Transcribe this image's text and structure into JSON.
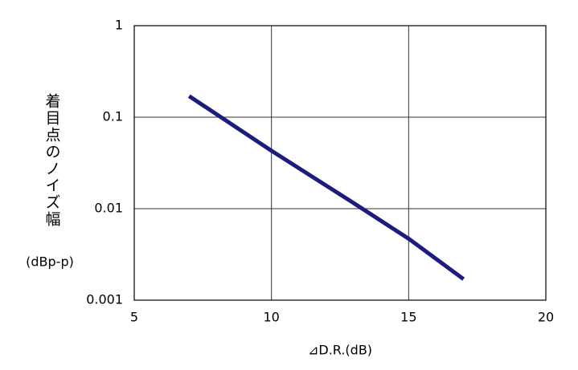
{
  "chart_data": {
    "type": "line",
    "ylabel": "着目点のノイズ幅",
    "ylabel_unit": "(dBp-p)",
    "xlabel": "⊿D.R.(dB)",
    "x": [
      7,
      10,
      13,
      15,
      17
    ],
    "values": [
      0.17,
      0.043,
      0.0115,
      0.0047,
      0.0017
    ],
    "color": "#1c1c7c",
    "xlim": [
      5,
      20
    ],
    "xticks": [
      5,
      10,
      15,
      20
    ],
    "ylim": [
      0.001,
      1
    ],
    "yticks": [
      0.001,
      0.01,
      0.1,
      1
    ],
    "yscale": "log",
    "grid": true
  }
}
